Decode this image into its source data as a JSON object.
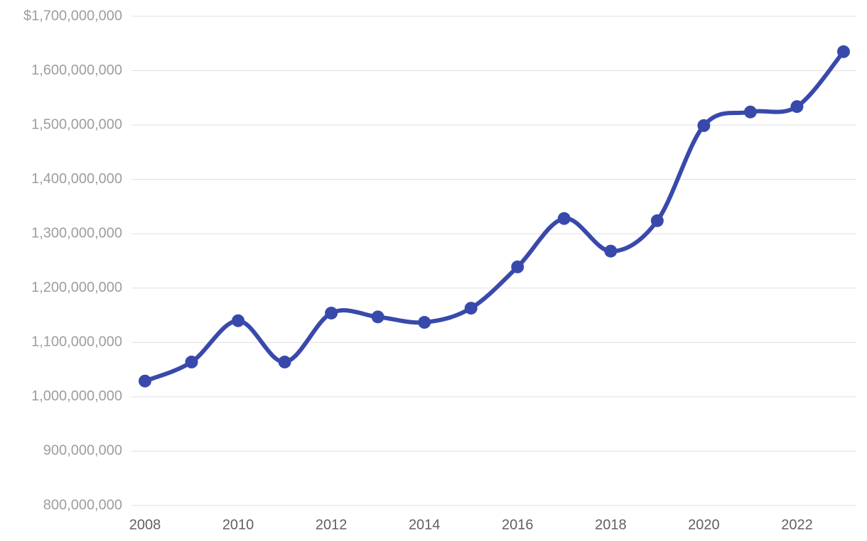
{
  "chart_data": {
    "type": "line",
    "x": [
      2008,
      2009,
      2010,
      2011,
      2012,
      2013,
      2014,
      2015,
      2016,
      2017,
      2018,
      2019,
      2020,
      2021,
      2022,
      2023
    ],
    "series": [
      {
        "color": "#3949ab",
        "values": [
          1029000000,
          1064000000,
          1140000000,
          1064000000,
          1154000000,
          1147000000,
          1137000000,
          1163000000,
          1239000000,
          1328000000,
          1268000000,
          1324000000,
          1499000000,
          1524000000,
          1534000000,
          1635000000
        ]
      }
    ],
    "xlim": [
      2008,
      2023
    ],
    "xticks": [
      2008,
      2010,
      2012,
      2014,
      2016,
      2018,
      2020,
      2022
    ],
    "ylim": [
      800000000,
      1700000000
    ],
    "yticks": [
      {
        "value": 800000000,
        "label": "800,000,000"
      },
      {
        "value": 900000000,
        "label": "900,000,000"
      },
      {
        "value": 1000000000,
        "label": "1,000,000,000"
      },
      {
        "value": 1100000000,
        "label": "1,100,000,000"
      },
      {
        "value": 1200000000,
        "label": "1,200,000,000"
      },
      {
        "value": 1300000000,
        "label": "1,300,000,000"
      },
      {
        "value": 1400000000,
        "label": "1,400,000,000"
      },
      {
        "value": 1500000000,
        "label": "1,500,000,000"
      },
      {
        "value": 1600000000,
        "label": "1,600,000,000"
      },
      {
        "value": 1700000000,
        "label": "$1,700,000,000"
      }
    ],
    "grid": true
  }
}
